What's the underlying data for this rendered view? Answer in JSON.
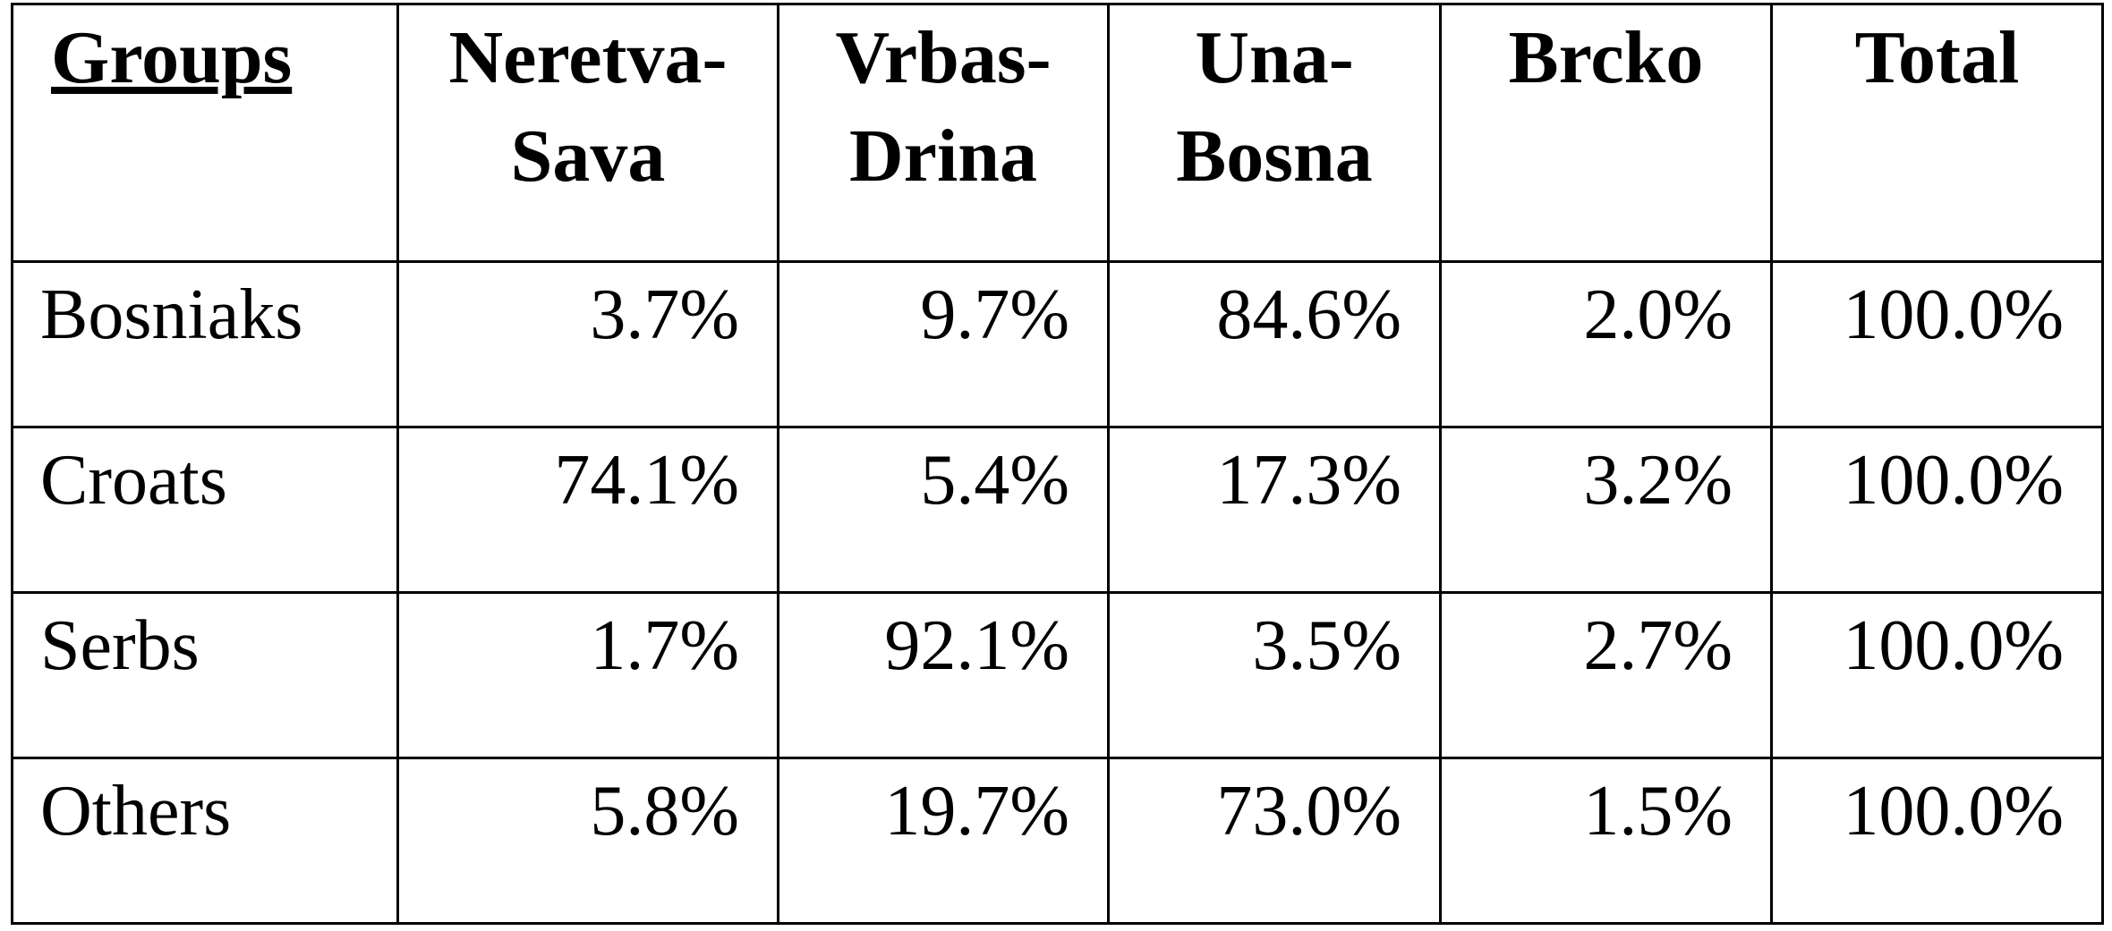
{
  "table": {
    "header": [
      "Groups",
      "Neretva-\nSava",
      "Vrbas-\nDrina",
      "Una-\nBosna",
      "Brcko",
      "Total"
    ],
    "rows": [
      [
        "Bosniaks",
        "3.7%",
        "9.7%",
        "84.6%",
        "2.0%",
        "100.0%"
      ],
      [
        "Croats",
        "74.1%",
        "5.4%",
        "17.3%",
        "3.2%",
        "100.0%"
      ],
      [
        "Serbs",
        "1.7%",
        "92.1%",
        "3.5%",
        "2.7%",
        "100.0%"
      ],
      [
        "Others",
        "5.8%",
        "19.7%",
        "73.0%",
        "1.5%",
        "100.0%"
      ]
    ]
  }
}
